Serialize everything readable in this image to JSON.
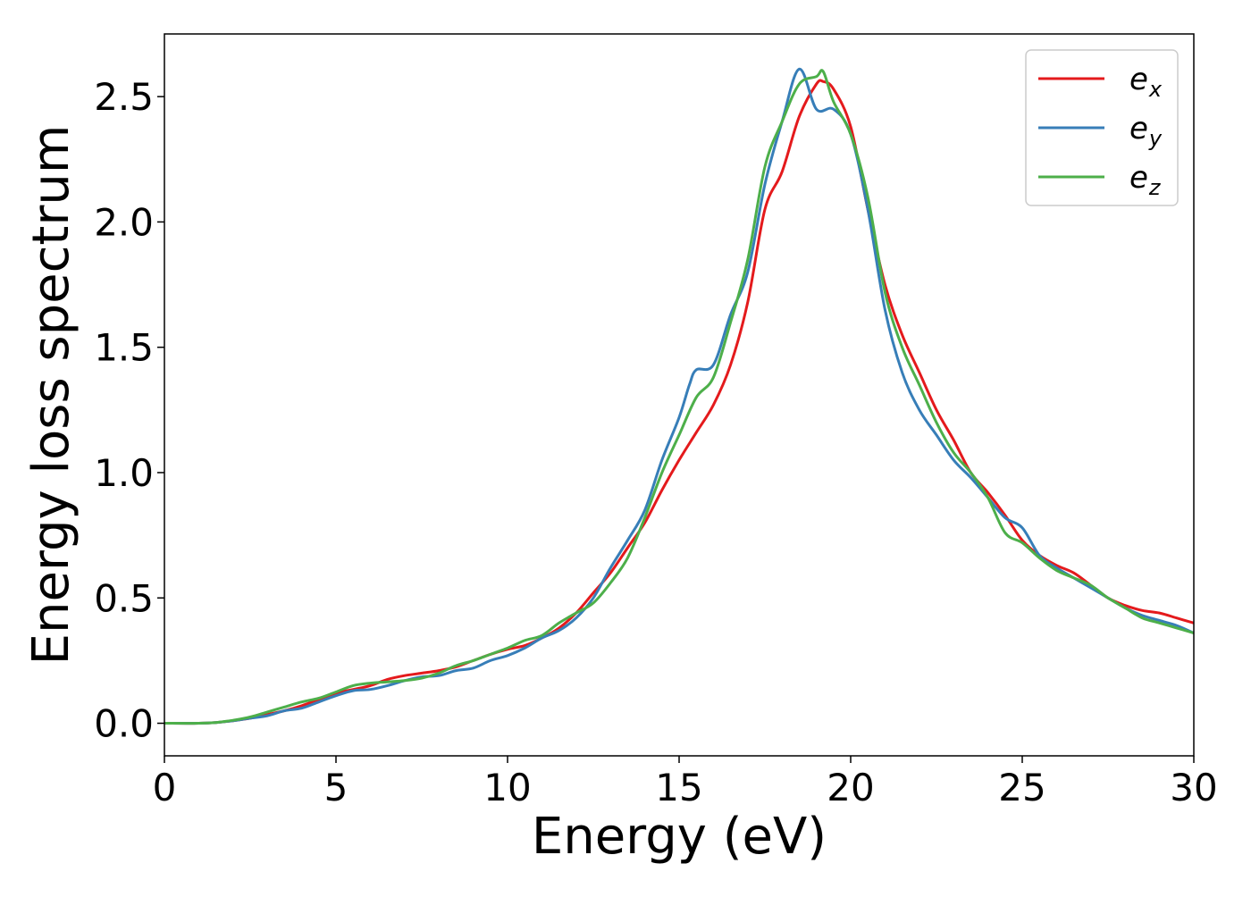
{
  "chart_data": {
    "type": "line",
    "title": "",
    "xlabel": "Energy (eV)",
    "ylabel": "Energy loss spectrum",
    "xlim": [
      0,
      30
    ],
    "ylim": [
      -0.13,
      2.75
    ],
    "xticks": [
      0,
      5,
      10,
      15,
      20,
      25,
      30
    ],
    "yticks": [
      0.0,
      0.5,
      1.0,
      1.5,
      2.0,
      2.5
    ],
    "xtick_labels": [
      "0",
      "5",
      "10",
      "15",
      "20",
      "25",
      "30"
    ],
    "ytick_labels": [
      "0.0",
      "0.5",
      "1.0",
      "1.5",
      "2.0",
      "2.5"
    ],
    "grid": false,
    "legend_position": "top-right",
    "series": [
      {
        "name": "e_x",
        "legend_base": "e",
        "legend_sub": "x",
        "color": "#e41a1c",
        "points": [
          [
            0,
            0
          ],
          [
            1,
            0
          ],
          [
            1.5,
            0.003
          ],
          [
            2,
            0.01
          ],
          [
            2.5,
            0.02
          ],
          [
            3,
            0.035
          ],
          [
            3.5,
            0.05
          ],
          [
            4,
            0.07
          ],
          [
            4.5,
            0.095
          ],
          [
            5,
            0.12
          ],
          [
            5.5,
            0.135
          ],
          [
            6,
            0.15
          ],
          [
            6.5,
            0.175
          ],
          [
            7,
            0.19
          ],
          [
            7.5,
            0.2
          ],
          [
            8,
            0.21
          ],
          [
            8.5,
            0.225
          ],
          [
            9,
            0.25
          ],
          [
            9.5,
            0.275
          ],
          [
            10,
            0.295
          ],
          [
            10.5,
            0.31
          ],
          [
            11,
            0.34
          ],
          [
            11.5,
            0.38
          ],
          [
            12,
            0.44
          ],
          [
            12.5,
            0.52
          ],
          [
            13,
            0.6
          ],
          [
            13.5,
            0.7
          ],
          [
            14,
            0.8
          ],
          [
            14.5,
            0.93
          ],
          [
            15,
            1.05
          ],
          [
            15.5,
            1.16
          ],
          [
            16,
            1.27
          ],
          [
            16.5,
            1.43
          ],
          [
            17,
            1.68
          ],
          [
            17.5,
            2.05
          ],
          [
            18,
            2.2
          ],
          [
            18.5,
            2.42
          ],
          [
            19,
            2.55
          ],
          [
            19.2,
            2.56
          ],
          [
            19.5,
            2.53
          ],
          [
            20,
            2.38
          ],
          [
            20.5,
            2.05
          ],
          [
            21,
            1.75
          ],
          [
            21.5,
            1.55
          ],
          [
            22,
            1.4
          ],
          [
            22.5,
            1.25
          ],
          [
            23,
            1.13
          ],
          [
            23.5,
            1.0
          ],
          [
            24,
            0.92
          ],
          [
            24.5,
            0.83
          ],
          [
            25,
            0.73
          ],
          [
            25.5,
            0.67
          ],
          [
            26,
            0.63
          ],
          [
            26.5,
            0.6
          ],
          [
            27,
            0.55
          ],
          [
            27.5,
            0.5
          ],
          [
            28,
            0.47
          ],
          [
            28.5,
            0.45
          ],
          [
            29,
            0.44
          ],
          [
            29.5,
            0.42
          ],
          [
            30,
            0.4
          ]
        ]
      },
      {
        "name": "e_y",
        "legend_base": "e",
        "legend_sub": "y",
        "color": "#377eb8",
        "points": [
          [
            0,
            0
          ],
          [
            1,
            0
          ],
          [
            1.5,
            0.003
          ],
          [
            2,
            0.01
          ],
          [
            2.5,
            0.02
          ],
          [
            3,
            0.03
          ],
          [
            3.5,
            0.05
          ],
          [
            4,
            0.06
          ],
          [
            4.5,
            0.085
          ],
          [
            5,
            0.11
          ],
          [
            5.5,
            0.13
          ],
          [
            6,
            0.135
          ],
          [
            6.5,
            0.15
          ],
          [
            7,
            0.17
          ],
          [
            7.5,
            0.185
          ],
          [
            8,
            0.19
          ],
          [
            8.5,
            0.21
          ],
          [
            9,
            0.22
          ],
          [
            9.5,
            0.25
          ],
          [
            10,
            0.27
          ],
          [
            10.5,
            0.3
          ],
          [
            11,
            0.34
          ],
          [
            11.5,
            0.37
          ],
          [
            12,
            0.42
          ],
          [
            12.5,
            0.5
          ],
          [
            13,
            0.62
          ],
          [
            13.5,
            0.73
          ],
          [
            14,
            0.85
          ],
          [
            14.5,
            1.05
          ],
          [
            15,
            1.22
          ],
          [
            15.3,
            1.35
          ],
          [
            15.5,
            1.41
          ],
          [
            16,
            1.43
          ],
          [
            16.5,
            1.63
          ],
          [
            17,
            1.8
          ],
          [
            17.5,
            2.15
          ],
          [
            18,
            2.4
          ],
          [
            18.5,
            2.61
          ],
          [
            19,
            2.45
          ],
          [
            19.5,
            2.45
          ],
          [
            20,
            2.35
          ],
          [
            20.5,
            2.05
          ],
          [
            21,
            1.65
          ],
          [
            21.5,
            1.4
          ],
          [
            22,
            1.25
          ],
          [
            22.5,
            1.15
          ],
          [
            23,
            1.05
          ],
          [
            23.5,
            0.98
          ],
          [
            24,
            0.9
          ],
          [
            24.5,
            0.82
          ],
          [
            25,
            0.78
          ],
          [
            25.5,
            0.67
          ],
          [
            26,
            0.62
          ],
          [
            26.5,
            0.58
          ],
          [
            27,
            0.54
          ],
          [
            27.5,
            0.5
          ],
          [
            28,
            0.46
          ],
          [
            28.5,
            0.43
          ],
          [
            29,
            0.41
          ],
          [
            29.5,
            0.39
          ],
          [
            30,
            0.36
          ]
        ]
      },
      {
        "name": "e_z",
        "legend_base": "e",
        "legend_sub": "z",
        "color": "#4daf4a",
        "points": [
          [
            0,
            0
          ],
          [
            1,
            0
          ],
          [
            1.5,
            0.003
          ],
          [
            2,
            0.012
          ],
          [
            2.5,
            0.025
          ],
          [
            3,
            0.045
          ],
          [
            3.5,
            0.065
          ],
          [
            4,
            0.085
          ],
          [
            4.5,
            0.1
          ],
          [
            5,
            0.125
          ],
          [
            5.5,
            0.15
          ],
          [
            6,
            0.16
          ],
          [
            6.5,
            0.165
          ],
          [
            7,
            0.17
          ],
          [
            7.5,
            0.18
          ],
          [
            8,
            0.2
          ],
          [
            8.5,
            0.23
          ],
          [
            9,
            0.25
          ],
          [
            9.5,
            0.275
          ],
          [
            10,
            0.3
          ],
          [
            10.5,
            0.33
          ],
          [
            11,
            0.35
          ],
          [
            11.5,
            0.4
          ],
          [
            12,
            0.44
          ],
          [
            12.5,
            0.48
          ],
          [
            13,
            0.56
          ],
          [
            13.5,
            0.66
          ],
          [
            14,
            0.82
          ],
          [
            14.5,
            1.0
          ],
          [
            15,
            1.15
          ],
          [
            15.5,
            1.3
          ],
          [
            16,
            1.38
          ],
          [
            16.5,
            1.6
          ],
          [
            17,
            1.85
          ],
          [
            17.5,
            2.22
          ],
          [
            18,
            2.4
          ],
          [
            18.5,
            2.55
          ],
          [
            19,
            2.58
          ],
          [
            19.2,
            2.6
          ],
          [
            19.5,
            2.48
          ],
          [
            20,
            2.35
          ],
          [
            20.5,
            2.1
          ],
          [
            21,
            1.72
          ],
          [
            21.5,
            1.5
          ],
          [
            22,
            1.35
          ],
          [
            22.5,
            1.2
          ],
          [
            23,
            1.08
          ],
          [
            23.5,
            1.0
          ],
          [
            24,
            0.9
          ],
          [
            24.5,
            0.76
          ],
          [
            25,
            0.72
          ],
          [
            25.5,
            0.66
          ],
          [
            26,
            0.61
          ],
          [
            26.5,
            0.58
          ],
          [
            27,
            0.55
          ],
          [
            27.5,
            0.5
          ],
          [
            28,
            0.46
          ],
          [
            28.5,
            0.42
          ],
          [
            29,
            0.4
          ],
          [
            29.5,
            0.38
          ],
          [
            30,
            0.36
          ]
        ]
      }
    ]
  }
}
